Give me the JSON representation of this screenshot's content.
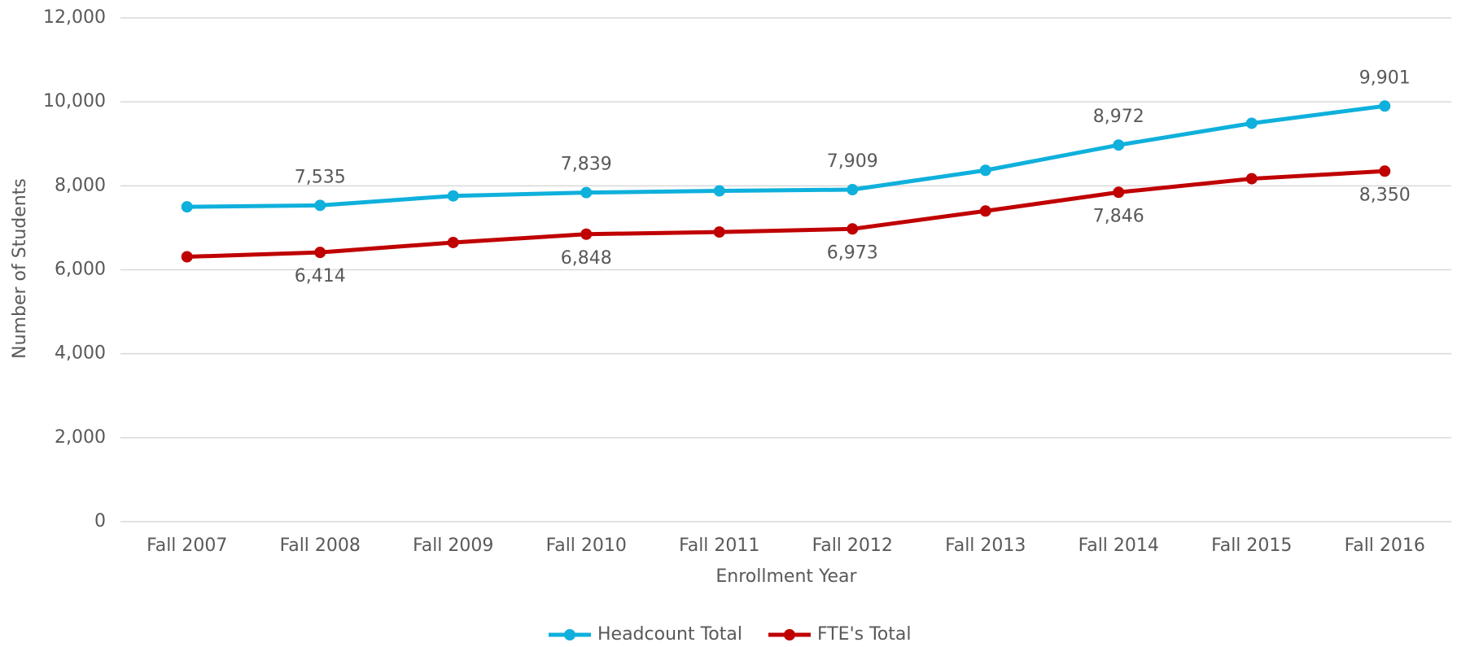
{
  "chart_data": {
    "type": "line",
    "xlabel": "Enrollment Year",
    "ylabel": "Number of Students",
    "categories": [
      "Fall 2007",
      "Fall 2008",
      "Fall 2009",
      "Fall 2010",
      "Fall 2011",
      "Fall 2012",
      "Fall 2013",
      "Fall 2014",
      "Fall 2015",
      "Fall 2016"
    ],
    "series": [
      {
        "name": "Headcount Total",
        "color": "#0fb0dc",
        "values": [
          7500,
          7535,
          7760,
          7839,
          7880,
          7909,
          8370,
          8972,
          9490,
          9901
        ],
        "value_labels": [
          null,
          "7,535",
          null,
          "7,839",
          null,
          "7,909",
          null,
          "8,972",
          null,
          "9,901"
        ]
      },
      {
        "name": "FTE's Total",
        "color": "#c00000",
        "values": [
          6310,
          6414,
          6650,
          6848,
          6900,
          6973,
          7400,
          7846,
          8170,
          8350
        ],
        "value_labels": [
          null,
          "6,414",
          null,
          "6,848",
          null,
          "6,973",
          null,
          "7,846",
          null,
          "8,350"
        ]
      }
    ],
    "ylim": [
      0,
      12000
    ],
    "yticks": [
      0,
      {
        "value": 2000,
        "label": "2,000"
      },
      {
        "value": 4000,
        "label": "4,000"
      },
      {
        "value": 6000,
        "label": "6,000"
      },
      {
        "value": 8000,
        "label": "8,000"
      },
      {
        "value": 10000,
        "label": "10,000"
      },
      {
        "value": 12000,
        "label": "12,000"
      }
    ],
    "grid": true,
    "legend": "bottom"
  }
}
